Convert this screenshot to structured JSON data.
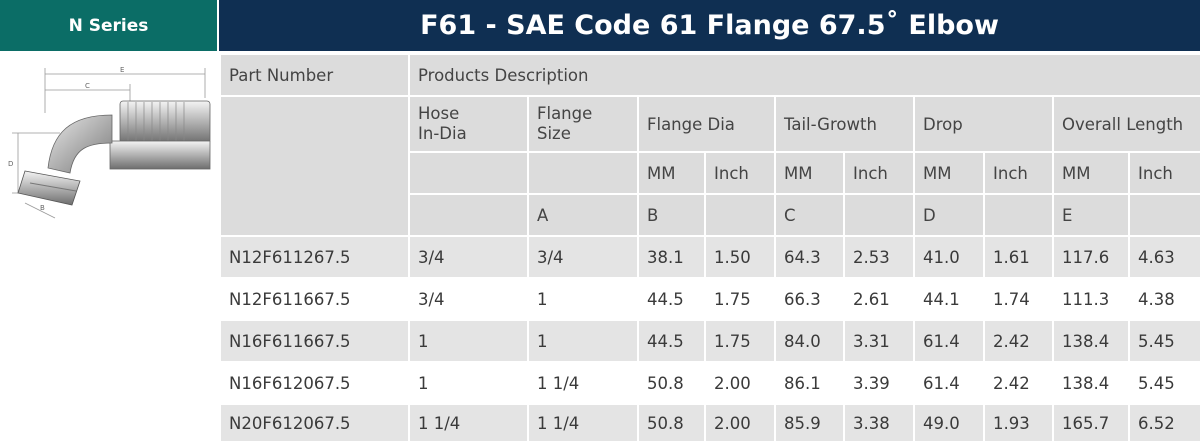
{
  "header": {
    "series_tab": "N Series",
    "title": "F61 - SAE Code 61 Flange 67.5˚ Elbow"
  },
  "figure": {
    "icon": "flange-elbow-drawing",
    "dimension_labels": [
      "E",
      "C",
      "D",
      "B"
    ]
  },
  "table": {
    "part_number_header": "Part Number",
    "products_description_header": "Products Description",
    "hose_in_dia": [
      "Hose",
      "In-Dia"
    ],
    "flange_size": [
      "Flange",
      "Size"
    ],
    "flange_dia": "Flange Dia",
    "tail_growth": "Tail-Growth",
    "drop": "Drop",
    "overall_length": "Overall Length",
    "units": [
      "MM",
      "Inch",
      "MM",
      "Inch",
      "MM",
      "Inch",
      "MM",
      "Inch"
    ],
    "letters": {
      "flange_size": "A",
      "flange_dia": "B",
      "tail_growth": "C",
      "drop": "D",
      "overall_length": "E"
    },
    "rows": [
      [
        "N12F611267.5",
        "3/4",
        "3/4",
        "38.1",
        "1.50",
        "64.3",
        "2.53",
        "41.0",
        "1.61",
        "117.6",
        "4.63"
      ],
      [
        "N12F611667.5",
        "3/4",
        "1",
        "44.5",
        "1.75",
        "66.3",
        "2.61",
        "44.1",
        "1.74",
        "111.3",
        "4.38"
      ],
      [
        "N16F611667.5",
        "1",
        "1",
        "44.5",
        "1.75",
        "84.0",
        "3.31",
        "61.4",
        "2.42",
        "138.4",
        "5.45"
      ],
      [
        "N16F612067.5",
        "1",
        "1 1/4",
        "50.8",
        "2.00",
        "86.1",
        "3.39",
        "61.4",
        "2.42",
        "138.4",
        "5.45"
      ],
      [
        "N20F612067.5",
        "1 1/4",
        "1 1/4",
        "50.8",
        "2.00",
        "85.9",
        "3.38",
        "49.0",
        "1.93",
        "165.7",
        "6.52"
      ]
    ]
  }
}
